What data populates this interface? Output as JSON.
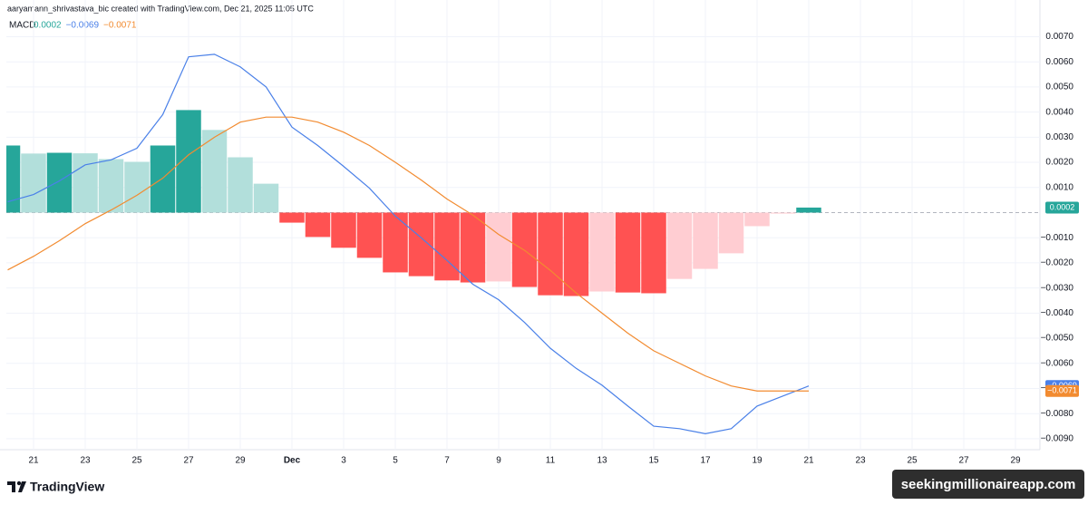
{
  "header": {
    "attribution": "aaryamann_shrivastava_bic created with TradingView.com, Dec 21, 2025 11:05 UTC"
  },
  "chart_data": {
    "type": "macd",
    "indicator": "MACD",
    "categories": [
      null,
      "21",
      null,
      "23",
      null,
      "25",
      null,
      "27",
      null,
      "29",
      null,
      "Dec",
      null,
      "3",
      null,
      "5",
      null,
      "7",
      null,
      "9",
      null,
      "11",
      null,
      "13",
      null,
      "15",
      null,
      "17",
      null,
      "19",
      null,
      "21",
      null,
      "23",
      null,
      "25",
      null,
      "27",
      null,
      "29"
    ],
    "series": [
      {
        "kind": "histogram",
        "values": [
          0.00267,
          0.00235,
          0.00238,
          0.00236,
          0.00213,
          0.00202,
          0.00267,
          0.00408,
          0.00329,
          0.0022,
          0.00115,
          -0.0004,
          -0.00097,
          -0.0014,
          -0.0018,
          -0.00238,
          -0.00253,
          -0.0027,
          -0.00278,
          -0.00274,
          -0.00296,
          -0.00329,
          -0.00332,
          -0.00314,
          -0.00318,
          -0.00321,
          -0.00264,
          -0.00224,
          -0.00162,
          -0.00054,
          -4e-05,
          0.0002,
          null,
          null,
          null,
          null,
          null,
          null,
          null,
          null
        ],
        "colors": [
          "#26a69a",
          "#b2dfdb",
          "#26a69a",
          "#b2dfdb",
          "#b2dfdb",
          "#b2dfdb",
          "#26a69a",
          "#26a69a",
          "#b2dfdb",
          "#b2dfdb",
          "#b2dfdb",
          "#ff5252",
          "#ff5252",
          "#ff5252",
          "#ff5252",
          "#ff5252",
          "#ff5252",
          "#ff5252",
          "#ff5252",
          "#ffcdd2",
          "#ff5252",
          "#ff5252",
          "#ff5252",
          "#ffcdd2",
          "#ff5252",
          "#ff5252",
          "#ffcdd2",
          "#ffcdd2",
          "#ffcdd2",
          "#ffcdd2",
          "#ffcdd2",
          "#26a69a",
          null,
          null,
          null,
          null,
          null,
          null,
          null,
          null
        ],
        "color": "#26a69a",
        "last_value_label": "0.0002"
      },
      {
        "kind": "line",
        "color": "#4a80e8",
        "values": [
          0.00043,
          0.00072,
          0.00126,
          0.0019,
          0.0021,
          0.00256,
          0.0039,
          0.0062,
          0.0063,
          0.0058,
          0.005,
          0.0034,
          0.00267,
          0.00184,
          0.00097,
          -0.00014,
          -0.001,
          -0.0019,
          -0.00285,
          -0.00347,
          -0.00437,
          -0.0054,
          -0.0062,
          -0.00687,
          -0.0077,
          -0.0085,
          -0.0086,
          -0.0088,
          -0.0086,
          -0.0077,
          -0.0073,
          -0.0069,
          null,
          null,
          null,
          null,
          null,
          null,
          null,
          null
        ],
        "last_value_label": "−0.0069"
      },
      {
        "kind": "line",
        "color": "#f28b30",
        "values": [
          -0.00228,
          -0.00174,
          -0.00112,
          -0.00044,
          0.0001,
          0.00069,
          0.00137,
          0.0023,
          0.003,
          0.0036,
          0.0038,
          0.0038,
          0.0036,
          0.0032,
          0.00267,
          0.002,
          0.0013,
          0.00054,
          -0.0001,
          -0.00087,
          -0.0015,
          -0.0023,
          -0.0032,
          -0.004,
          -0.0048,
          -0.0055,
          -0.006,
          -0.0065,
          -0.0069,
          -0.0071,
          -0.0071,
          -0.0071,
          null,
          null,
          null,
          null,
          null,
          null,
          null,
          null
        ],
        "last_value_label": "−0.0071"
      }
    ],
    "ylim": [
      -0.0094,
      0.0081
    ],
    "yticks": [
      {
        "value": 0.007,
        "label": "0.0070"
      },
      {
        "value": 0.006,
        "label": "0.0060"
      },
      {
        "value": 0.005,
        "label": "0.0050"
      },
      {
        "value": 0.004,
        "label": "0.0040"
      },
      {
        "value": 0.003,
        "label": "0.0030"
      },
      {
        "value": 0.002,
        "label": "0.0020"
      },
      {
        "value": 0.001,
        "label": "0.0010"
      },
      {
        "value": -0.001,
        "label": "−0.0010"
      },
      {
        "value": -0.002,
        "label": "−0.0020"
      },
      {
        "value": -0.003,
        "label": "−0.0030"
      },
      {
        "value": -0.004,
        "label": "−0.0040"
      },
      {
        "value": -0.005,
        "label": "−0.0050"
      },
      {
        "value": -0.006,
        "label": "−0.0060"
      },
      {
        "value": -0.007,
        "label": "−0.0070"
      },
      {
        "value": -0.008,
        "label": "−0.0080"
      },
      {
        "value": -0.009,
        "label": "−0.0090"
      }
    ],
    "grid": true
  },
  "footer": {
    "logo": "TradingView",
    "watermark": "seekingmillionaireapp.com"
  }
}
